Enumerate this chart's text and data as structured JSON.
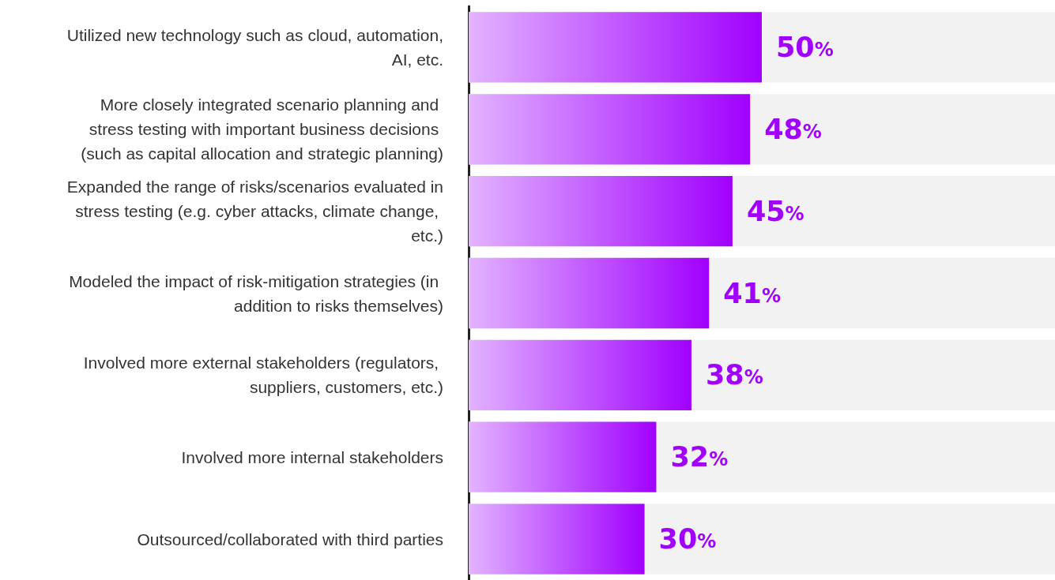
{
  "chart_data": {
    "type": "bar",
    "orientation": "horizontal",
    "categories": [
      "Utilized new technology such as cloud, automation, AI, etc.",
      "More closely integrated scenario planning and stress testing with important business decisions (such as capital allocation and strategic planning)",
      "Expanded the range of risks/scenarios evaluated in stress testing (e.g. cyber attacks, climate change, etc.)",
      "Modeled the impact of risk-mitigation strategies (in addition to risks themselves)",
      "Involved more external stakeholders (regulators, suppliers, customers, etc.)",
      "Involved more internal stakeholders",
      "Outsourced/collaborated with third parties"
    ],
    "values": [
      50,
      48,
      45,
      41,
      38,
      32,
      30
    ],
    "value_labels": [
      "50%",
      "48%",
      "45%",
      "41%",
      "38%",
      "32%",
      "30%"
    ],
    "color": "#a100ff",
    "xlim": [
      0,
      100
    ],
    "tick_labels": "y"
  }
}
